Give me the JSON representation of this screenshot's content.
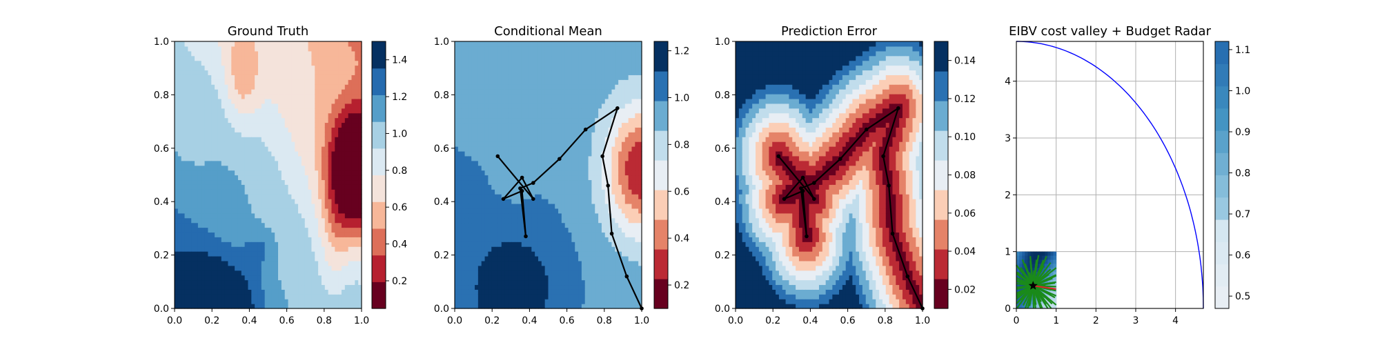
{
  "chart_data": [
    {
      "id": "ground-truth",
      "type": "heatmap",
      "title": "Ground Truth",
      "xlim": [
        0,
        1
      ],
      "ylim": [
        0,
        1
      ],
      "xticks": [
        "0.0",
        "0.2",
        "0.4",
        "0.6",
        "0.8",
        "1.0"
      ],
      "yticks": [
        "0.0",
        "0.2",
        "0.4",
        "0.6",
        "0.8",
        "1.0"
      ],
      "colormap": "RdBu",
      "colorbar": {
        "range": [
          0.05,
          1.5
        ],
        "ticks": [
          "0.2",
          "0.4",
          "0.6",
          "0.8",
          "1.0",
          "1.2",
          "1.4"
        ]
      }
    },
    {
      "id": "conditional-mean",
      "type": "heatmap",
      "title": "Conditional Mean",
      "xlim": [
        0,
        1
      ],
      "ylim": [
        0,
        1
      ],
      "xticks": [
        "0.0",
        "0.2",
        "0.4",
        "0.6",
        "0.8",
        "1.0"
      ],
      "yticks": [
        "0.0",
        "0.2",
        "0.4",
        "0.6",
        "0.8",
        "1.0"
      ],
      "colormap": "RdBu",
      "colorbar": {
        "range": [
          0.1,
          1.24
        ],
        "ticks": [
          "0.2",
          "0.4",
          "0.6",
          "0.8",
          "1.0",
          "1.2"
        ]
      },
      "path": {
        "x": [
          1.0,
          0.92,
          0.84,
          0.82,
          0.79,
          0.87,
          0.7,
          0.56,
          0.42,
          0.35,
          0.38,
          0.36,
          0.26,
          0.36,
          0.42,
          0.23
        ],
        "y": [
          0.0,
          0.12,
          0.28,
          0.46,
          0.57,
          0.75,
          0.67,
          0.56,
          0.47,
          0.45,
          0.27,
          0.44,
          0.41,
          0.49,
          0.41,
          0.57
        ]
      }
    },
    {
      "id": "prediction-error",
      "type": "heatmap",
      "title": "Prediction Error",
      "xlim": [
        0,
        1
      ],
      "ylim": [
        0,
        1
      ],
      "xticks": [
        "0.0",
        "0.2",
        "0.4",
        "0.6",
        "0.8",
        "1.0"
      ],
      "yticks": [
        "0.0",
        "0.2",
        "0.4",
        "0.6",
        "0.8",
        "1.0"
      ],
      "colormap": "RdBu",
      "colorbar": {
        "range": [
          0.01,
          0.15
        ],
        "ticks": [
          "0.02",
          "0.04",
          "0.06",
          "0.08",
          "0.10",
          "0.12",
          "0.14"
        ]
      },
      "path": {
        "x": [
          1.0,
          0.92,
          0.84,
          0.82,
          0.79,
          0.87,
          0.7,
          0.56,
          0.42,
          0.35,
          0.38,
          0.36,
          0.26,
          0.36,
          0.42,
          0.23
        ],
        "y": [
          0.0,
          0.12,
          0.28,
          0.46,
          0.57,
          0.75,
          0.67,
          0.56,
          0.47,
          0.45,
          0.27,
          0.44,
          0.41,
          0.49,
          0.41,
          0.57
        ]
      }
    },
    {
      "id": "eibv",
      "type": "line",
      "title": "EIBV cost valley + Budget Radar",
      "xlim": [
        0,
        4.7
      ],
      "ylim": [
        0,
        4.7
      ],
      "xticks": [
        "0",
        "1",
        "2",
        "3",
        "4"
      ],
      "yticks": [
        "0",
        "1",
        "2",
        "3",
        "4"
      ],
      "grid": true,
      "radar_radius": 4.7,
      "star": {
        "x": 0.42,
        "y": 0.4
      },
      "cost_field": {
        "xlim": [
          0,
          1
        ],
        "ylim": [
          0,
          1
        ]
      },
      "colorbar": {
        "range": [
          0.47,
          1.12
        ],
        "ticks": [
          "0.5",
          "0.6",
          "0.7",
          "0.8",
          "0.9",
          "1.0",
          "1.1"
        ]
      }
    }
  ]
}
